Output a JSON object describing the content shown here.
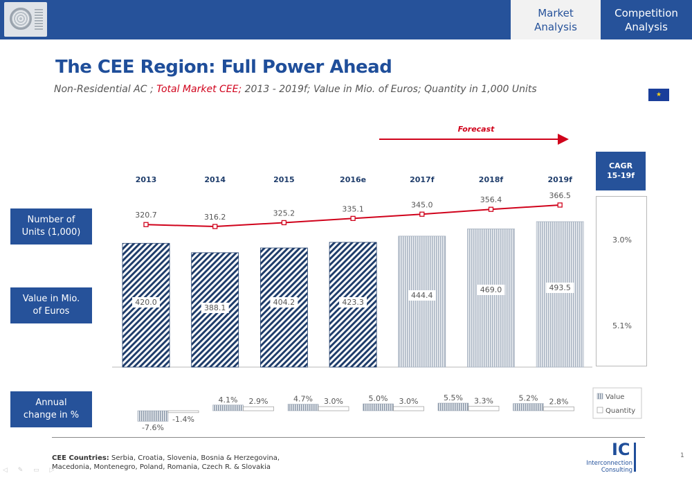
{
  "header": {
    "tabs": [
      {
        "label": "Market\nAnalysis",
        "active": true
      },
      {
        "label": "Competition\nAnalysis",
        "active": false
      }
    ]
  },
  "title": "The CEE Region: Full Power Ahead",
  "subtitle": {
    "part1": "Non-Residential AC ; ",
    "part2": "Total Market CEE;",
    "part3": " 2013 - 2019f; Value in Mio. of Euros; Quantity in 1,000 Units"
  },
  "side_labels": {
    "units": "Number of\nUnits (1,000)",
    "value": "Value in Mio.\nof Euros",
    "change": "Annual\nchange in %"
  },
  "cagr": {
    "header": "CAGR\n15-19f",
    "quantity": "3.0%",
    "value": "5.1%"
  },
  "forecast_label": "Forecast",
  "chart_data": [
    {
      "type": "bar",
      "categories": [
        "2013",
        "2014",
        "2015",
        "2016e",
        "2017f",
        "2018f",
        "2019f"
      ],
      "series": [
        {
          "name": "Value in Mio. of Euros",
          "values": [
            420.0,
            388.1,
            404.2,
            423.3,
            444.4,
            469.0,
            493.5
          ],
          "type": "bar"
        },
        {
          "name": "Number of Units (1,000)",
          "values": [
            320.7,
            316.2,
            325.2,
            335.1,
            345.0,
            356.4,
            366.5
          ],
          "type": "line"
        }
      ],
      "value_labels": [
        "420.0",
        "388.1",
        "404.2",
        "423.3",
        "444.4",
        "469.0",
        "493.5"
      ],
      "unit_labels": [
        "320.7",
        "316.2",
        "325.2",
        "335.1",
        "345.0",
        "356.4",
        "366.5"
      ],
      "forecast_from_index": 4,
      "colors": {
        "historical": "#1f3d6b",
        "forecast": "#a9b4c2",
        "line": "#d0021b"
      }
    },
    {
      "type": "bar",
      "categories": [
        "2014",
        "2015",
        "2016e",
        "2017f",
        "2018f",
        "2019f"
      ],
      "series": [
        {
          "name": "Value",
          "values": [
            -7.6,
            4.1,
            4.7,
            5.0,
            5.5,
            5.2
          ],
          "labels": [
            "-7.6%",
            "4.1%",
            "4.7%",
            "5.0%",
            "5.5%",
            "5.2%"
          ]
        },
        {
          "name": "Quantity",
          "values": [
            -1.4,
            2.9,
            3.0,
            3.0,
            3.3,
            2.8
          ],
          "labels": [
            "-1.4%",
            "2.9%",
            "3.0%",
            "3.0%",
            "3.3%",
            "2.8%"
          ]
        }
      ],
      "legend": [
        "Value",
        "Quantity"
      ],
      "legend_position": "right"
    }
  ],
  "footer": {
    "label": "CEE Countries:",
    "text": " Serbia, Croatia, Slovenia, Bosnia & Herzegovina, Macedonia, Montenegro, Poland, Romania, Czech R. & Slovakia"
  },
  "logo": {
    "mark": "IC",
    "name": "Interconnection\nConsulting"
  },
  "page_number": "1"
}
